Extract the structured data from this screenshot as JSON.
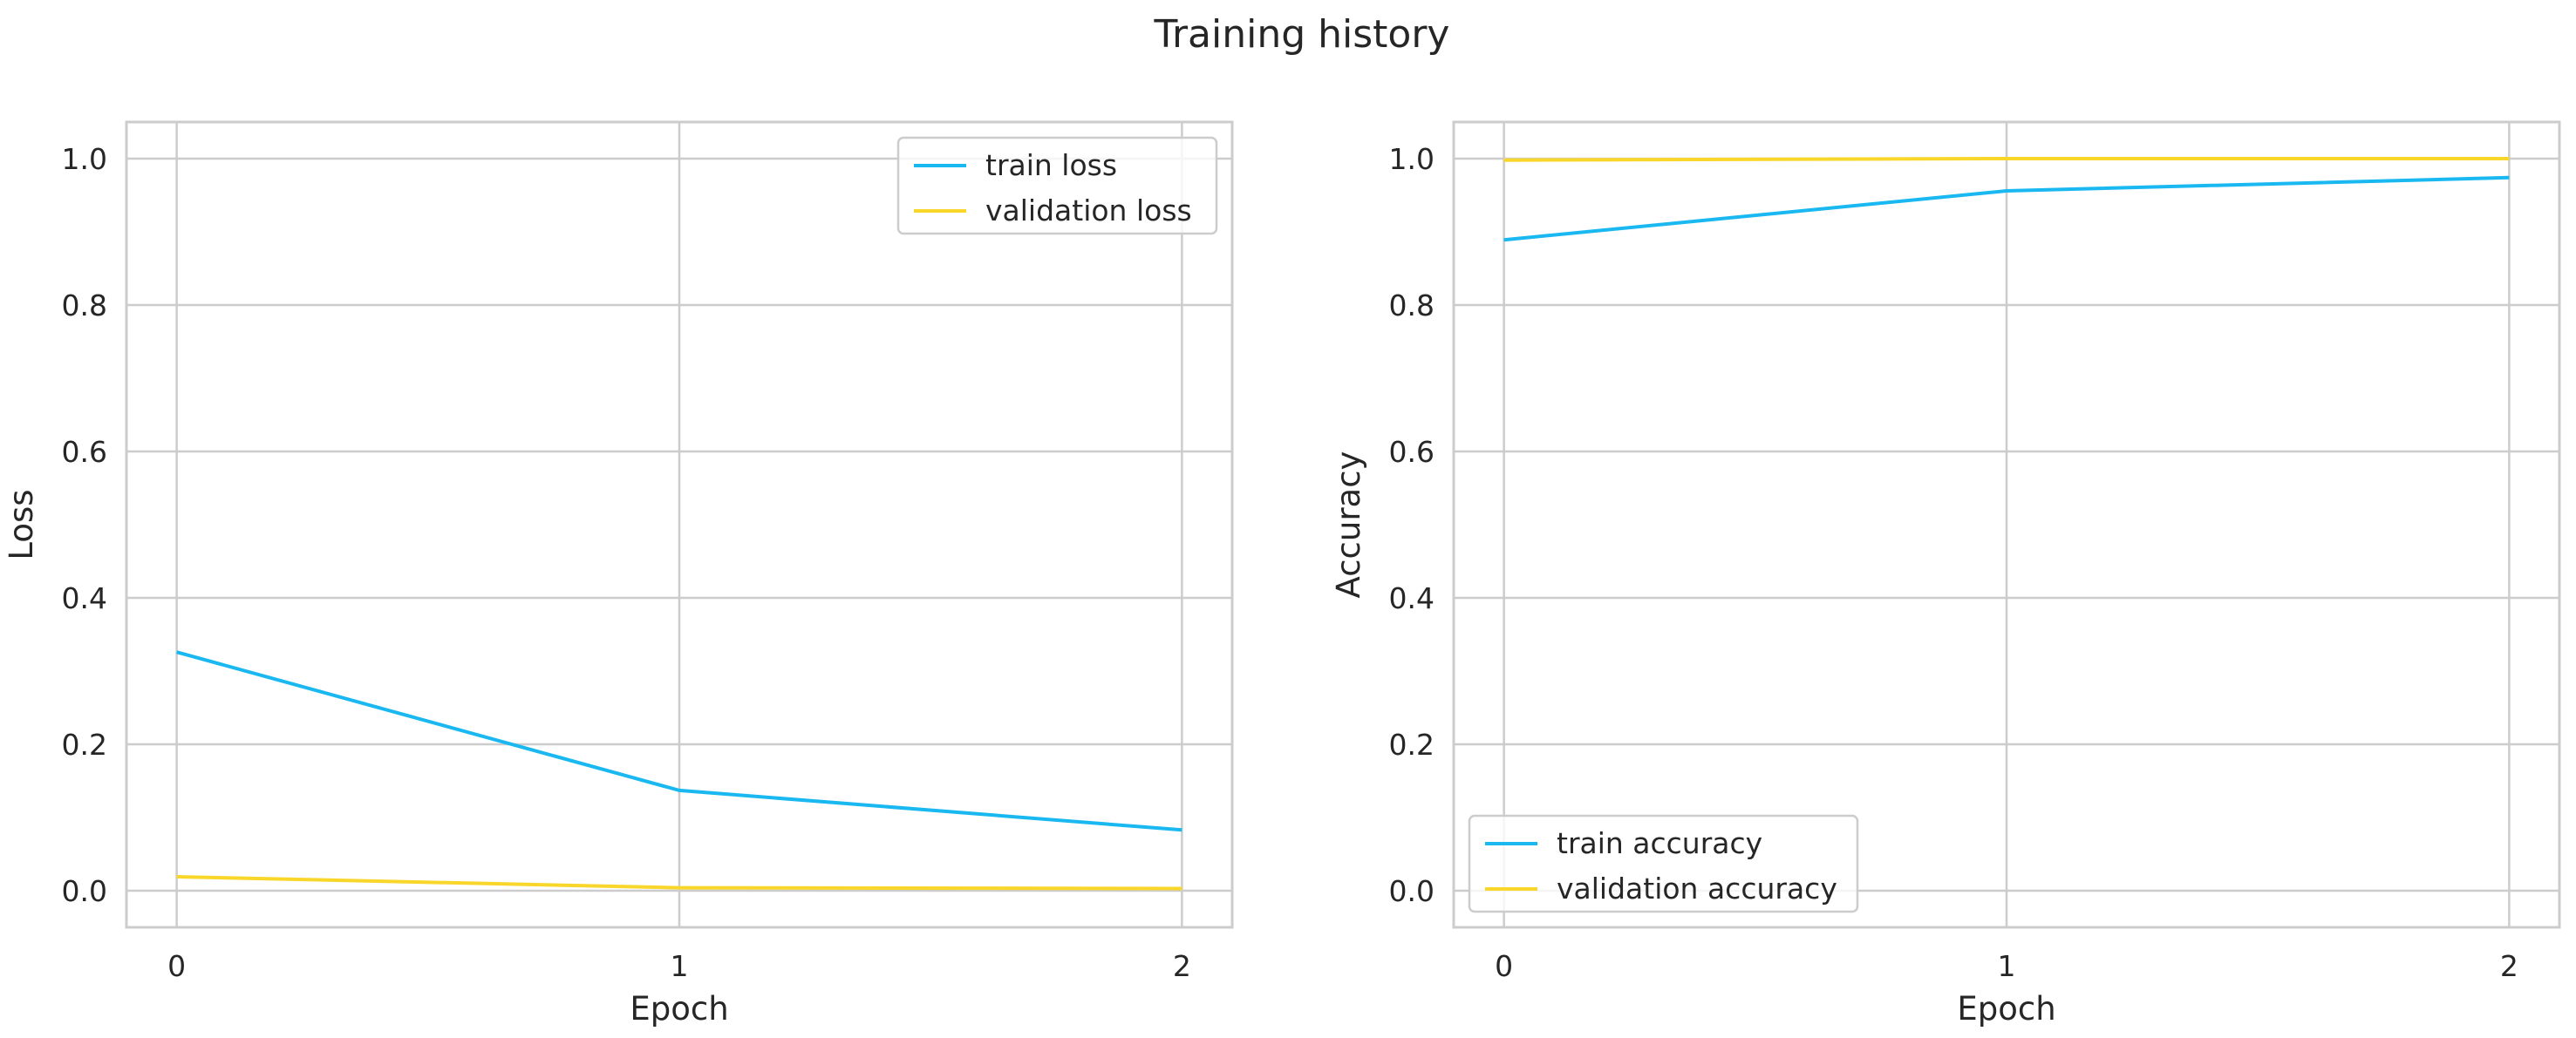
{
  "figure": {
    "title": "Training history"
  },
  "chart_data": [
    {
      "type": "line",
      "xlabel": "Epoch",
      "ylabel": "Loss",
      "xlim": [
        -0.1,
        2.1
      ],
      "ylim": [
        -0.05,
        1.05
      ],
      "xticks": [
        0,
        1,
        2
      ],
      "yticks": [
        0.0,
        0.2,
        0.4,
        0.6,
        0.8,
        1.0
      ],
      "grid": true,
      "legend": "upper right",
      "series": [
        {
          "name": "train loss",
          "color": "#1ab8f0",
          "x": [
            0,
            1,
            2
          ],
          "y": [
            0.326,
            0.137,
            0.083
          ]
        },
        {
          "name": "validation loss",
          "color": "#f9d62a",
          "x": [
            0,
            1,
            2
          ],
          "y": [
            0.019,
            0.004,
            0.003
          ]
        }
      ]
    },
    {
      "type": "line",
      "xlabel": "Epoch",
      "ylabel": "Accuracy",
      "xlim": [
        -0.1,
        2.1
      ],
      "ylim": [
        -0.05,
        1.05
      ],
      "xticks": [
        0,
        1,
        2
      ],
      "yticks": [
        0.0,
        0.2,
        0.4,
        0.6,
        0.8,
        1.0
      ],
      "grid": true,
      "legend": "lower left",
      "series": [
        {
          "name": "train accuracy",
          "color": "#1ab8f0",
          "x": [
            0,
            1,
            2
          ],
          "y": [
            0.889,
            0.956,
            0.974
          ]
        },
        {
          "name": "validation accuracy",
          "color": "#f9d62a",
          "x": [
            0,
            1,
            2
          ],
          "y": [
            0.998,
            1.0,
            1.0
          ]
        }
      ]
    }
  ]
}
